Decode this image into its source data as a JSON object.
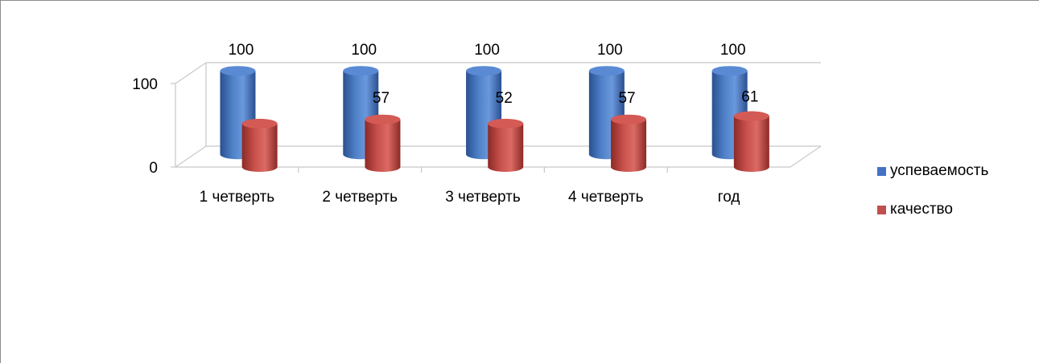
{
  "chart_data": {
    "type": "bar",
    "style": "3d-cylinder",
    "categories": [
      "1 четверть",
      "2 четверть",
      "3 четверть",
      "4 четверть",
      "год"
    ],
    "series": [
      {
        "name": "успеваемость",
        "values": [
          100,
          100,
          100,
          100,
          100
        ],
        "color": "#4472c4",
        "data_labels": [
          "100",
          "100",
          "100",
          "100",
          "100"
        ]
      },
      {
        "name": "качество",
        "values": [
          52,
          57,
          52,
          57,
          61
        ],
        "color": "#c0504d",
        "data_labels": [
          "",
          "57",
          "52",
          "57",
          "61"
        ]
      }
    ],
    "y_ticks": [
      "0",
      "100"
    ],
    "ylim": [
      0,
      100
    ],
    "grid": true,
    "legend_position": "right"
  }
}
